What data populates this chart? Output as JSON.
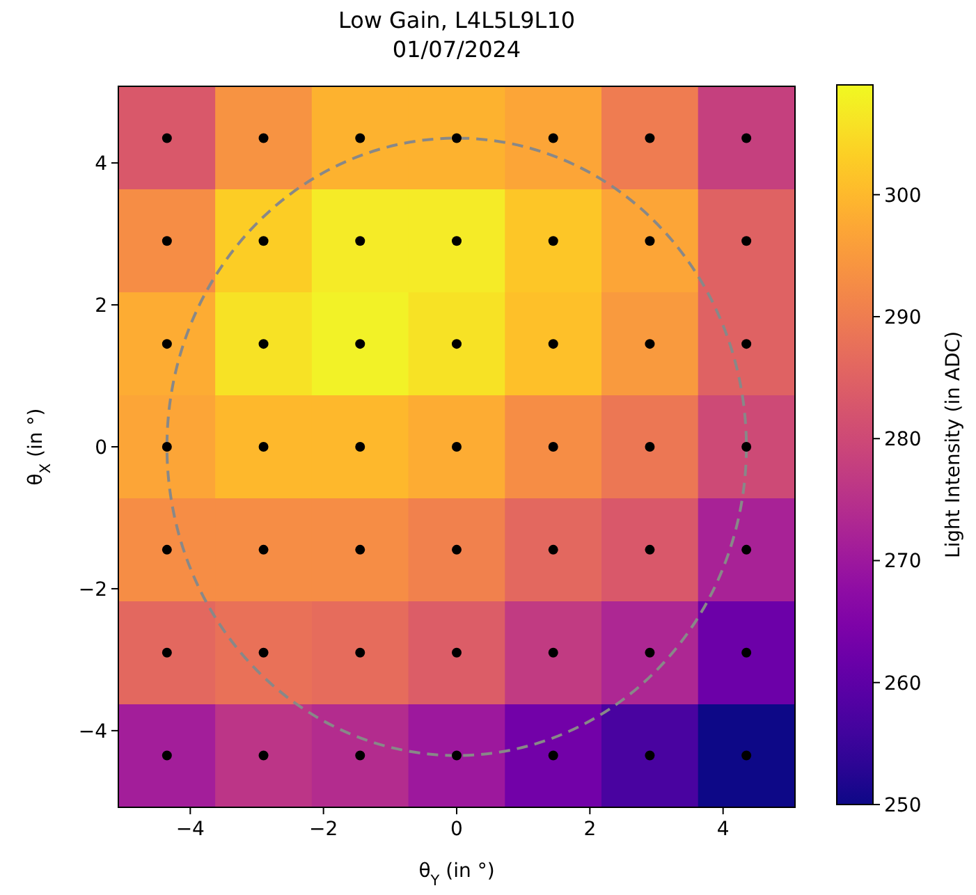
{
  "chart_data": {
    "type": "heatmap",
    "title": "Low Gain, L4L5L9L10",
    "subtitle": "01/07/2024",
    "xlabel": "θ$_{Y}$ (in °)",
    "ylabel": "θ$_{X}$ (in °)",
    "clabel": "Light Intensity (in ADC)",
    "x": [
      -4.35,
      -2.9,
      -1.45,
      0,
      1.45,
      2.9,
      4.35
    ],
    "xlim": [
      -5.08,
      5.08
    ],
    "ylim": [
      -5.08,
      5.08
    ],
    "xticks": [
      {
        "value": -4,
        "label": "−4"
      },
      {
        "value": -2,
        "label": "−2"
      },
      0,
      2,
      4
    ],
    "yticks": [
      {
        "value": -4,
        "label": "−4"
      },
      {
        "value": -2,
        "label": "−2"
      },
      0,
      2,
      4
    ],
    "clim": [
      250,
      309
    ],
    "cticks": [
      250,
      260,
      270,
      280,
      290,
      300
    ],
    "cells": [
      [
        283,
        294,
        299,
        299,
        297,
        290,
        278
      ],
      [
        293,
        303,
        307,
        307,
        302,
        297,
        285
      ],
      [
        298,
        306,
        308,
        306,
        301,
        295,
        285
      ],
      [
        297,
        300,
        300,
        298,
        293,
        289,
        280
      ],
      [
        293,
        293,
        293,
        291,
        286,
        283,
        272
      ],
      [
        286,
        288,
        287,
        284,
        277,
        273,
        262
      ],
      [
        271,
        276,
        274,
        270,
        263,
        257,
        250
      ]
    ],
    "series": [
      {
        "type": "scatter",
        "color": "#000000",
        "marker": "circle",
        "x": [
          -4.35,
          -2.9,
          -1.45,
          0,
          1.45,
          2.9,
          4.35,
          -4.35,
          -2.9,
          -1.45,
          0,
          1.45,
          2.9,
          4.35,
          -4.35,
          -2.9,
          -1.45,
          0,
          1.45,
          2.9,
          4.35,
          -4.35,
          -2.9,
          -1.45,
          0,
          1.45,
          2.9,
          4.35,
          -4.35,
          -2.9,
          -1.45,
          0,
          1.45,
          2.9,
          4.35,
          -4.35,
          -2.9,
          -1.45,
          0,
          1.45,
          2.9,
          4.35,
          -4.35,
          -2.9,
          -1.45,
          0,
          1.45,
          2.9,
          4.35
        ],
        "values": [
          4.35,
          4.35,
          4.35,
          4.35,
          4.35,
          4.35,
          4.35,
          2.9,
          2.9,
          2.9,
          2.9,
          2.9,
          2.9,
          2.9,
          1.45,
          1.45,
          1.45,
          1.45,
          1.45,
          1.45,
          1.45,
          0,
          0,
          0,
          0,
          0,
          0,
          0,
          -1.45,
          -1.45,
          -1.45,
          -1.45,
          -1.45,
          -1.45,
          -1.45,
          -2.9,
          -2.9,
          -2.9,
          -2.9,
          -2.9,
          -2.9,
          -2.9,
          -4.35,
          -4.35,
          -4.35,
          -4.35,
          -4.35,
          -4.35,
          -4.35
        ]
      }
    ]
  }
}
